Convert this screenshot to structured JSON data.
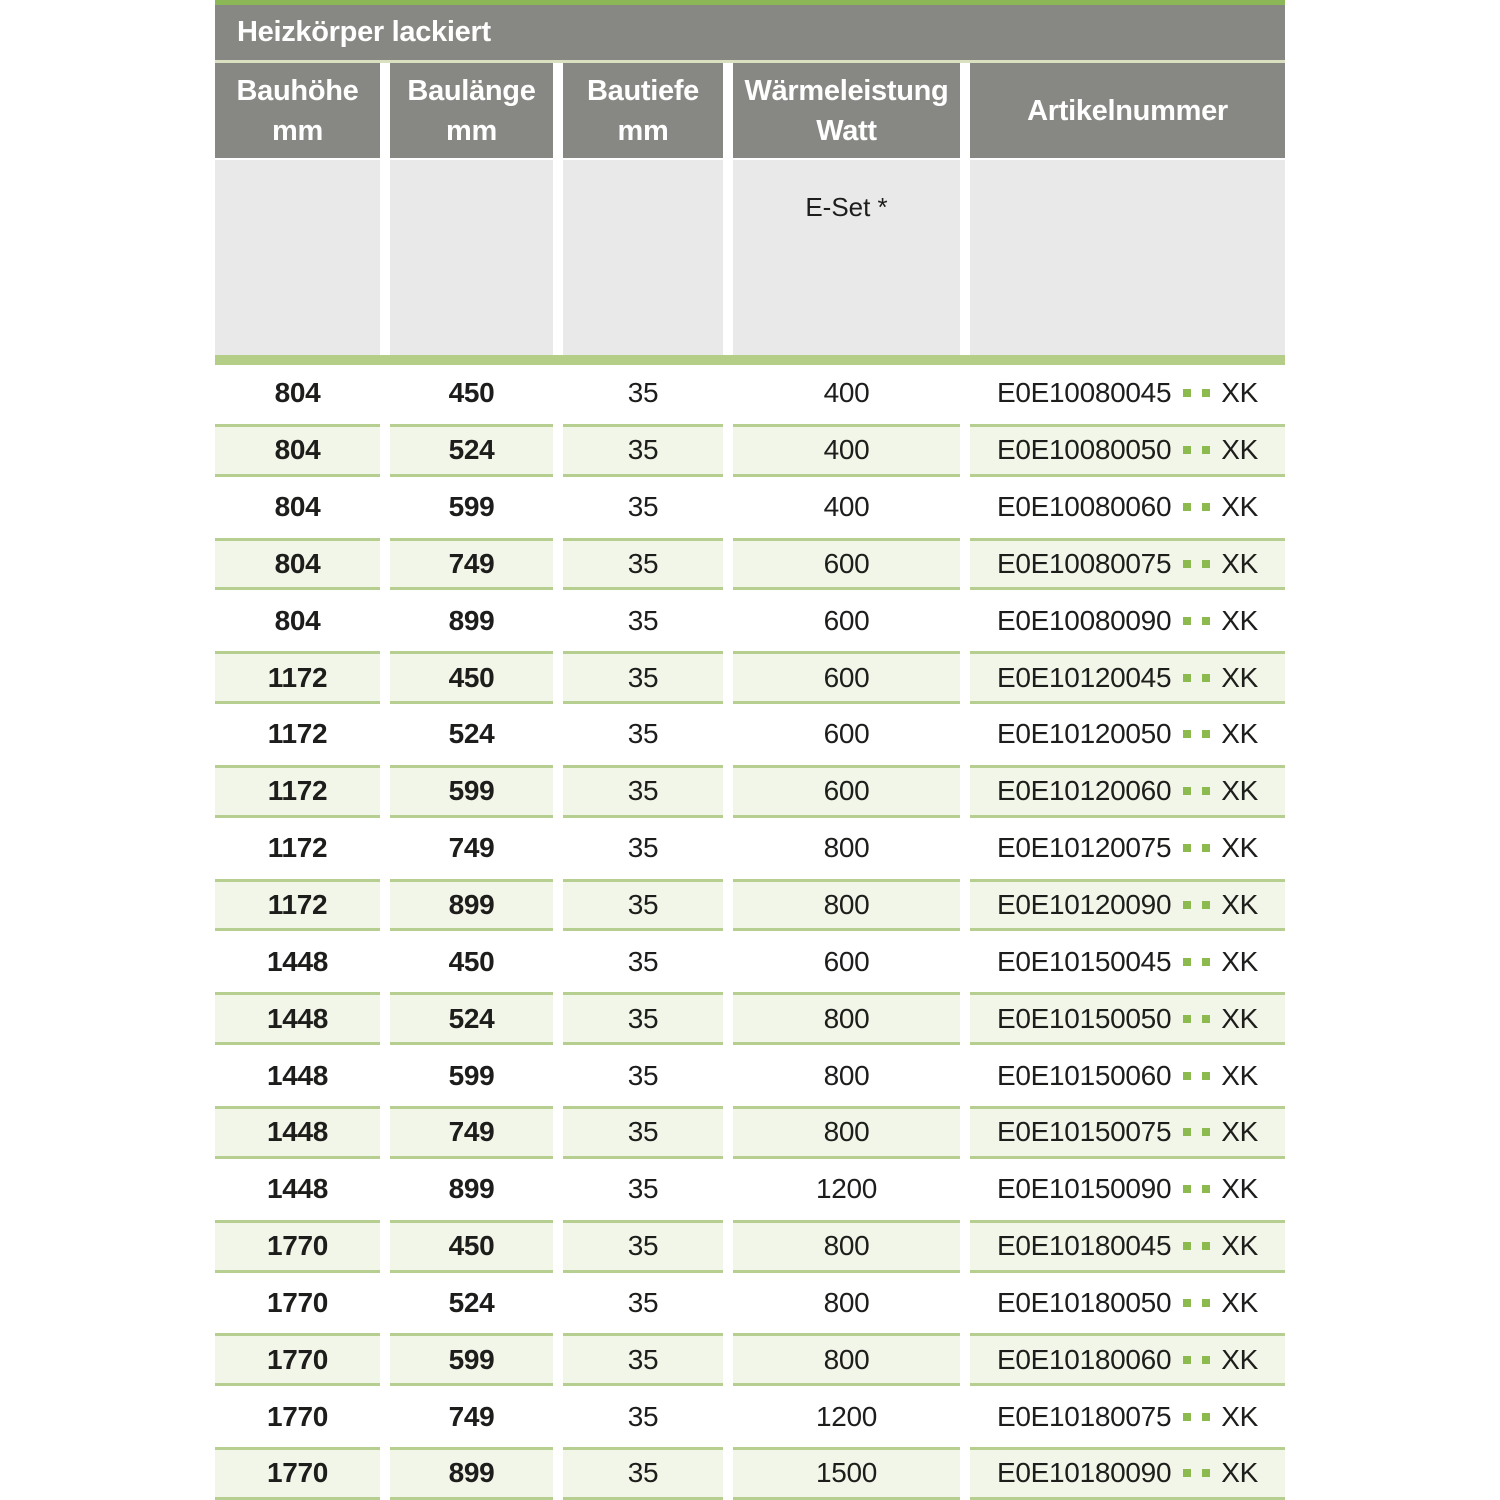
{
  "title": "Heizkörper lackiert",
  "columns": [
    {
      "label": "Bauhöhe",
      "unit": "mm"
    },
    {
      "label": "Baulänge",
      "unit": "mm"
    },
    {
      "label": "Bautiefe",
      "unit": "mm"
    },
    {
      "label": "Wärmeleistung",
      "unit": "Watt"
    },
    {
      "label": "Artikelnummer",
      "unit": ""
    }
  ],
  "subheader": {
    "eset_label": "E-Set *"
  },
  "colors": {
    "header_gray": "#878783",
    "top_line_green": "#8bb757",
    "separator_green": "#b4cd87",
    "zebra_row_green": "#f2f6e8",
    "zebra_border_green": "#b6cf90",
    "subheader_gray": "#e9e9e9",
    "dot_green": "#8cba4f",
    "text_dark": "#1d1d1b"
  },
  "rows": [
    {
      "bauhoehe": "804",
      "baulaenge": "450",
      "bautiefe": "35",
      "watt": "400",
      "artikel_code": "E0E10080045",
      "artikel_suffix": "XK"
    },
    {
      "bauhoehe": "804",
      "baulaenge": "524",
      "bautiefe": "35",
      "watt": "400",
      "artikel_code": "E0E10080050",
      "artikel_suffix": "XK"
    },
    {
      "bauhoehe": "804",
      "baulaenge": "599",
      "bautiefe": "35",
      "watt": "400",
      "artikel_code": "E0E10080060",
      "artikel_suffix": "XK"
    },
    {
      "bauhoehe": "804",
      "baulaenge": "749",
      "bautiefe": "35",
      "watt": "600",
      "artikel_code": "E0E10080075",
      "artikel_suffix": "XK"
    },
    {
      "bauhoehe": "804",
      "baulaenge": "899",
      "bautiefe": "35",
      "watt": "600",
      "artikel_code": "E0E10080090",
      "artikel_suffix": "XK"
    },
    {
      "bauhoehe": "1172",
      "baulaenge": "450",
      "bautiefe": "35",
      "watt": "600",
      "artikel_code": "E0E10120045",
      "artikel_suffix": "XK"
    },
    {
      "bauhoehe": "1172",
      "baulaenge": "524",
      "bautiefe": "35",
      "watt": "600",
      "artikel_code": "E0E10120050",
      "artikel_suffix": "XK"
    },
    {
      "bauhoehe": "1172",
      "baulaenge": "599",
      "bautiefe": "35",
      "watt": "600",
      "artikel_code": "E0E10120060",
      "artikel_suffix": "XK"
    },
    {
      "bauhoehe": "1172",
      "baulaenge": "749",
      "bautiefe": "35",
      "watt": "800",
      "artikel_code": "E0E10120075",
      "artikel_suffix": "XK"
    },
    {
      "bauhoehe": "1172",
      "baulaenge": "899",
      "bautiefe": "35",
      "watt": "800",
      "artikel_code": "E0E10120090",
      "artikel_suffix": "XK"
    },
    {
      "bauhoehe": "1448",
      "baulaenge": "450",
      "bautiefe": "35",
      "watt": "600",
      "artikel_code": "E0E10150045",
      "artikel_suffix": "XK"
    },
    {
      "bauhoehe": "1448",
      "baulaenge": "524",
      "bautiefe": "35",
      "watt": "800",
      "artikel_code": "E0E10150050",
      "artikel_suffix": "XK"
    },
    {
      "bauhoehe": "1448",
      "baulaenge": "599",
      "bautiefe": "35",
      "watt": "800",
      "artikel_code": "E0E10150060",
      "artikel_suffix": "XK"
    },
    {
      "bauhoehe": "1448",
      "baulaenge": "749",
      "bautiefe": "35",
      "watt": "800",
      "artikel_code": "E0E10150075",
      "artikel_suffix": "XK"
    },
    {
      "bauhoehe": "1448",
      "baulaenge": "899",
      "bautiefe": "35",
      "watt": "1200",
      "artikel_code": "E0E10150090",
      "artikel_suffix": "XK"
    },
    {
      "bauhoehe": "1770",
      "baulaenge": "450",
      "bautiefe": "35",
      "watt": "800",
      "artikel_code": "E0E10180045",
      "artikel_suffix": "XK"
    },
    {
      "bauhoehe": "1770",
      "baulaenge": "524",
      "bautiefe": "35",
      "watt": "800",
      "artikel_code": "E0E10180050",
      "artikel_suffix": "XK"
    },
    {
      "bauhoehe": "1770",
      "baulaenge": "599",
      "bautiefe": "35",
      "watt": "800",
      "artikel_code": "E0E10180060",
      "artikel_suffix": "XK"
    },
    {
      "bauhoehe": "1770",
      "baulaenge": "749",
      "bautiefe": "35",
      "watt": "1200",
      "artikel_code": "E0E10180075",
      "artikel_suffix": "XK"
    },
    {
      "bauhoehe": "1770",
      "baulaenge": "899",
      "bautiefe": "35",
      "watt": "1500",
      "artikel_code": "E0E10180090",
      "artikel_suffix": "XK"
    }
  ]
}
